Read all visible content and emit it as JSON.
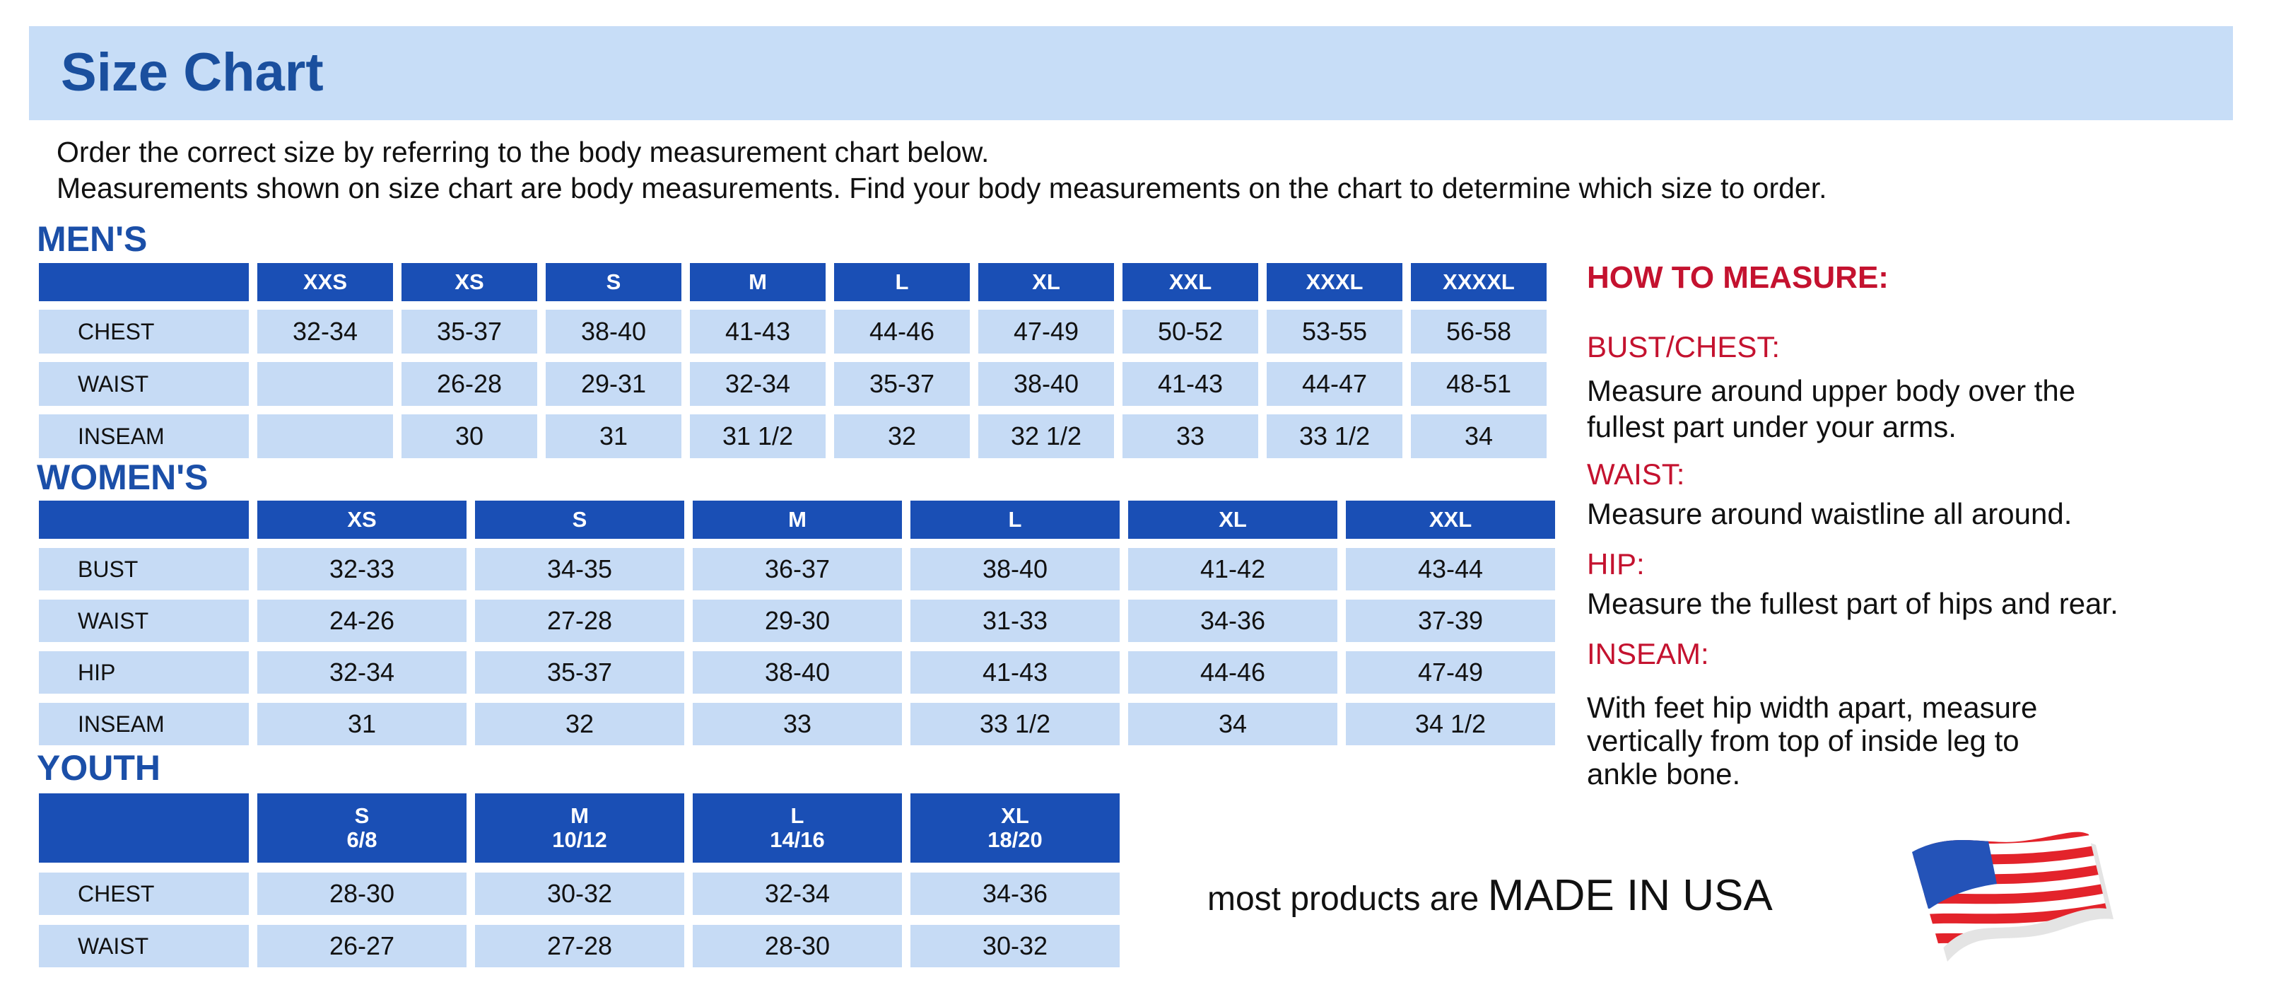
{
  "header": {
    "title": "Size Chart"
  },
  "intro": [
    "Order the correct size by referring to the body measurement chart below.",
    "Measurements shown on size chart are body measurements.  Find your body measurements on the chart to determine which size to order."
  ],
  "mens": {
    "label": "MEN'S",
    "sizes": [
      "XXS",
      "XS",
      "S",
      "M",
      "L",
      "XL",
      "XXL",
      "XXXL",
      "XXXXL"
    ],
    "rows": [
      {
        "label": "CHEST",
        "values": [
          "32-34",
          "35-37",
          "38-40",
          "41-43",
          "44-46",
          "47-49",
          "50-52",
          "53-55",
          "56-58"
        ]
      },
      {
        "label": "WAIST",
        "values": [
          "",
          "26-28",
          "29-31",
          "32-34",
          "35-37",
          "38-40",
          "41-43",
          "44-47",
          "48-51"
        ]
      },
      {
        "label": "INSEAM",
        "values": [
          "",
          "30",
          "31",
          "31 1/2",
          "32",
          "32 1/2",
          "33",
          "33 1/2",
          "34"
        ]
      }
    ]
  },
  "womens": {
    "label": "WOMEN'S",
    "sizes": [
      "XS",
      "S",
      "M",
      "L",
      "XL",
      "XXL"
    ],
    "rows": [
      {
        "label": "BUST",
        "values": [
          "32-33",
          "34-35",
          "36-37",
          "38-40",
          "41-42",
          "43-44"
        ]
      },
      {
        "label": "WAIST",
        "values": [
          "24-26",
          "27-28",
          "29-30",
          "31-33",
          "34-36",
          "37-39"
        ]
      },
      {
        "label": "HIP",
        "values": [
          "32-34",
          "35-37",
          "38-40",
          "41-43",
          "44-46",
          "47-49"
        ]
      },
      {
        "label": "INSEAM",
        "values": [
          "31",
          "32",
          "33",
          "33 1/2",
          "34",
          "34 1/2"
        ]
      }
    ]
  },
  "youth": {
    "label": "YOUTH",
    "sizes": [
      "S\n6/8",
      "M\n10/12",
      "L\n14/16",
      "XL\n18/20"
    ],
    "rows": [
      {
        "label": "CHEST",
        "values": [
          "28-30",
          "30-32",
          "32-34",
          "34-36"
        ]
      },
      {
        "label": "WAIST",
        "values": [
          "26-27",
          "27-28",
          "28-30",
          "30-32"
        ]
      }
    ]
  },
  "how_to_measure": {
    "title": "HOW TO MEASURE:",
    "bust_title": "BUST/CHEST:",
    "bust_text": [
      "Measure around upper body over the",
      "fullest part under your arms."
    ],
    "waist_title": "WAIST:",
    "waist_text": [
      "Measure around waistline all around."
    ],
    "hip_title": "HIP:",
    "hip_text": [
      "Measure the fullest part of hips and rear."
    ],
    "inseam_title": "INSEAM:",
    "inseam_text": [
      "With feet hip width apart, measure",
      "vertically from top of inside leg to",
      "ankle bone."
    ]
  },
  "footer": {
    "prefix": "most products are",
    "made_in": "MADE IN USA",
    "flag_icon": "us-flag-icon"
  },
  "colors": {
    "header_blue": "#1a4fb5",
    "cell_blue": "#c6dbf5",
    "banner": "#c7ddf7",
    "accent_red": "#c4122f"
  }
}
